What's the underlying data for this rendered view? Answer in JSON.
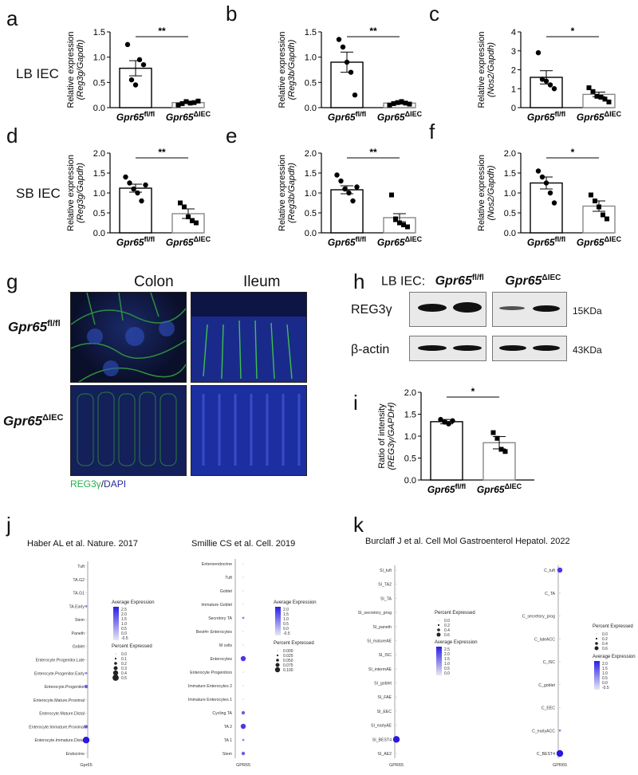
{
  "panels": {
    "a": "a",
    "b": "b",
    "c": "c",
    "d": "d",
    "e": "e",
    "f": "f",
    "g": "g",
    "h": "h",
    "i": "i",
    "j": "j",
    "k": "k"
  },
  "rows": {
    "lb": "LB IEC",
    "sb": "SB IEC"
  },
  "groups": {
    "ctrl": "Gpr65",
    "ctrl_sup": "fl/fl",
    "ko": "Gpr65",
    "ko_sup": "ΔIEC"
  },
  "bar_panels": [
    {
      "id": "a",
      "ylabel1": "Relative expression",
      "ylabel2": "(Reg3g/Gapdh)",
      "ymax": 1.5,
      "ticks": [
        0.0,
        0.5,
        1.0,
        1.5
      ],
      "means": [
        0.78,
        0.1
      ],
      "sems": [
        0.15,
        0.02
      ],
      "sig": "**",
      "pts": [
        [
          1.25,
          0.55,
          0.45,
          0.95,
          0.85
        ],
        [
          0.05,
          0.08,
          0.12,
          0.09,
          0.1,
          0.13
        ]
      ]
    },
    {
      "id": "b",
      "ylabel1": "Relative expression",
      "ylabel2": "(Reg3b/Gapdh)",
      "ymax": 1.5,
      "ticks": [
        0.0,
        0.5,
        1.0,
        1.5
      ],
      "means": [
        0.9,
        0.09
      ],
      "sems": [
        0.2,
        0.02
      ],
      "sig": "**",
      "pts": [
        [
          1.35,
          1.2,
          0.9,
          0.7,
          0.25
        ],
        [
          0.05,
          0.08,
          0.1,
          0.12,
          0.09,
          0.07
        ]
      ]
    },
    {
      "id": "c",
      "ylabel1": "Relative expression",
      "ylabel2": "(Nos2/Gapdh)",
      "ymax": 4,
      "ticks": [
        0,
        1,
        2,
        3,
        4
      ],
      "means": [
        1.6,
        0.7
      ],
      "sems": [
        0.35,
        0.12
      ],
      "sig": "*",
      "pts": [
        [
          2.9,
          1.5,
          1.4,
          1.2,
          1.0
        ],
        [
          1.05,
          0.85,
          0.6,
          0.55,
          0.45,
          0.3
        ]
      ]
    },
    {
      "id": "d",
      "ylabel1": "Relative expression",
      "ylabel2": "(Reg3g/Gapdh)",
      "ymax": 2.0,
      "ticks": [
        0.0,
        0.5,
        1.0,
        1.5,
        2.0
      ],
      "means": [
        1.12,
        0.48
      ],
      "sems": [
        0.1,
        0.12
      ],
      "sig": "**",
      "pts": [
        [
          1.4,
          1.25,
          1.1,
          1.0,
          0.8,
          1.2
        ],
        [
          0.75,
          0.65,
          0.4,
          0.3,
          0.25
        ]
      ]
    },
    {
      "id": "e",
      "ylabel1": "Relative expression",
      "ylabel2": "(Reg3b/Gapdh)",
      "ymax": 2.0,
      "ticks": [
        0.0,
        0.5,
        1.0,
        1.5,
        2.0
      ],
      "means": [
        1.08,
        0.38
      ],
      "sems": [
        0.1,
        0.1
      ],
      "sig": "**",
      "pts": [
        [
          1.45,
          1.3,
          1.1,
          1.0,
          0.8,
          1.15
        ],
        [
          0.95,
          0.35,
          0.25,
          0.2,
          0.15
        ]
      ]
    },
    {
      "id": "f",
      "ylabel1": "Relative expression",
      "ylabel2": "(Nos2/Gapdh)",
      "ymax": 2.0,
      "ticks": [
        0.0,
        0.5,
        1.0,
        1.5,
        2.0
      ],
      "means": [
        1.25,
        0.67
      ],
      "sems": [
        0.15,
        0.13
      ],
      "sig": "*",
      "pts": [
        [
          1.55,
          1.4,
          1.25,
          1.0,
          0.75
        ],
        [
          0.95,
          0.8,
          0.65,
          0.45,
          0.35
        ]
      ]
    }
  ],
  "panel_g": {
    "colon": "Colon",
    "ileum": "Ileum",
    "legend_green": "REG3γ",
    "legend_sep": "/",
    "legend_blue": "DAPI"
  },
  "panel_h": {
    "title": "LB IEC:",
    "reg3": "REG3γ",
    "actin": "β-actin",
    "kda15": "15KDa",
    "kda43": "43KDa"
  },
  "panel_i": {
    "ylabel1": "Ratio of intensity",
    "ylabel2": "(REG3γ/GAPDH)",
    "ymax": 2.0,
    "ticks": [
      0.0,
      0.5,
      1.0,
      1.5,
      2.0
    ],
    "means": [
      1.33,
      0.85
    ],
    "sems": [
      0.05,
      0.14
    ],
    "sig": "*",
    "pts": [
      [
        1.38,
        1.32,
        1.28,
        1.35
      ],
      [
        1.08,
        0.95,
        0.7,
        0.65
      ]
    ]
  },
  "panel_j": {
    "haber": {
      "title": "Haber AL et al. Nature. 2017",
      "gene": "Gpr65",
      "cells": [
        "Tuft",
        "TA.G2",
        "TA.G1",
        "TA.Early",
        "Stem",
        "Paneth",
        "Goblet",
        "Enterocyte.Progenitor.Late",
        "Enterocyte.Progenitor.Early",
        "Enterocyte.Progenitor",
        "Enterocyte.Mature.Proximal",
        "Enterocyte.Mature.Distal",
        "Enterocyte.Immature.Proximal",
        "Enterocyte.Immature.Distal",
        "Endocrine"
      ],
      "dots": [
        0,
        0,
        0,
        1,
        0,
        0,
        0,
        0,
        1,
        2,
        0,
        0,
        2,
        4,
        0
      ],
      "avg_title": "Average Expression",
      "avg_ticks": [
        "2.5",
        "2.0",
        "1.5",
        "1.0",
        "0.5",
        "0.0",
        "-0.5"
      ],
      "pct_title": "Percent Expressed",
      "pct_ticks": [
        "0.0",
        "0.1",
        "0.2",
        "0.3",
        "0.4",
        "0.5"
      ]
    },
    "smillie": {
      "title": "Smillie CS et al. Cell. 2019",
      "gene": "GPR65",
      "cells": [
        "Enteroendocrine",
        "Tuft",
        "Goblet",
        "Immature Goblet",
        "Secretory TA",
        "Best4+ Enterocytes",
        "M cells",
        "Enterocytes",
        "Enterocyte Progenitors",
        "Immature Enterocytes 2",
        "Immature Enterocytes 1",
        "Cycling TA",
        "TA 2",
        "TA 1",
        "Stem"
      ],
      "dots": [
        0,
        0,
        0,
        0,
        1,
        0,
        0,
        3,
        0,
        0,
        0,
        2,
        3,
        1,
        2
      ],
      "avg_title": "Average Expression",
      "avg_ticks": [
        "2.0",
        "1.5",
        "1.0",
        "0.5",
        "0.0",
        "-0.5"
      ],
      "pct_title": "Percent Expressed",
      "pct_ticks": [
        "0.000",
        "0.025",
        "0.050",
        "0.075",
        "0.100"
      ]
    }
  },
  "panel_k": {
    "title": "Burclaff J et al. Cell Mol Gastroenterol Hepatol. 2022",
    "si": {
      "gene": "GPR65",
      "cells": [
        "SI_tuft",
        "SI_TA2",
        "SI_TA",
        "SI_secretory_prog",
        "SI_paneth",
        "SI_matureAE",
        "SI_ISC",
        "SI_intermAE",
        "SI_goblet",
        "SI_FAE",
        "SI_EEC",
        "SI_earlyAE",
        "SI_BEST4",
        "SI_AE2"
      ],
      "dots": [
        0,
        0,
        0,
        0,
        0,
        0,
        0,
        0,
        0,
        0,
        0,
        0,
        4,
        0
      ],
      "pct_title": "Percent Expressed",
      "pct_ticks": [
        "0.0",
        "0.2",
        "0.4",
        "0.6"
      ],
      "avg_title": "Average Expression",
      "avg_ticks": [
        "2.5",
        "2.0",
        "1.5",
        "1.0",
        "0.5",
        "0.0"
      ]
    },
    "c": {
      "gene": "GPR65",
      "cells": [
        "C_tuft",
        "C_TA",
        "C_secretory_prog",
        "C_lateACC",
        "C_ISC",
        "C_goblet",
        "C_EEC",
        "C_earlyACC",
        "C_BEST4"
      ],
      "dots": [
        3,
        0,
        0,
        0,
        0,
        0,
        0,
        1,
        4
      ],
      "pct_title": "Percent Expressed",
      "pct_ticks": [
        "0.0",
        "0.2",
        "0.4",
        "0.6"
      ],
      "avg_title": "Average Expression",
      "avg_ticks": [
        "2.0",
        "1.5",
        "1.0",
        "0.5",
        "0.0",
        "-0.5"
      ]
    }
  },
  "colors": {
    "green": "#22b14c",
    "blue": "#2a2aa0",
    "dot_low": "#c8c8e8",
    "dot_high": "#2a1ee8"
  }
}
